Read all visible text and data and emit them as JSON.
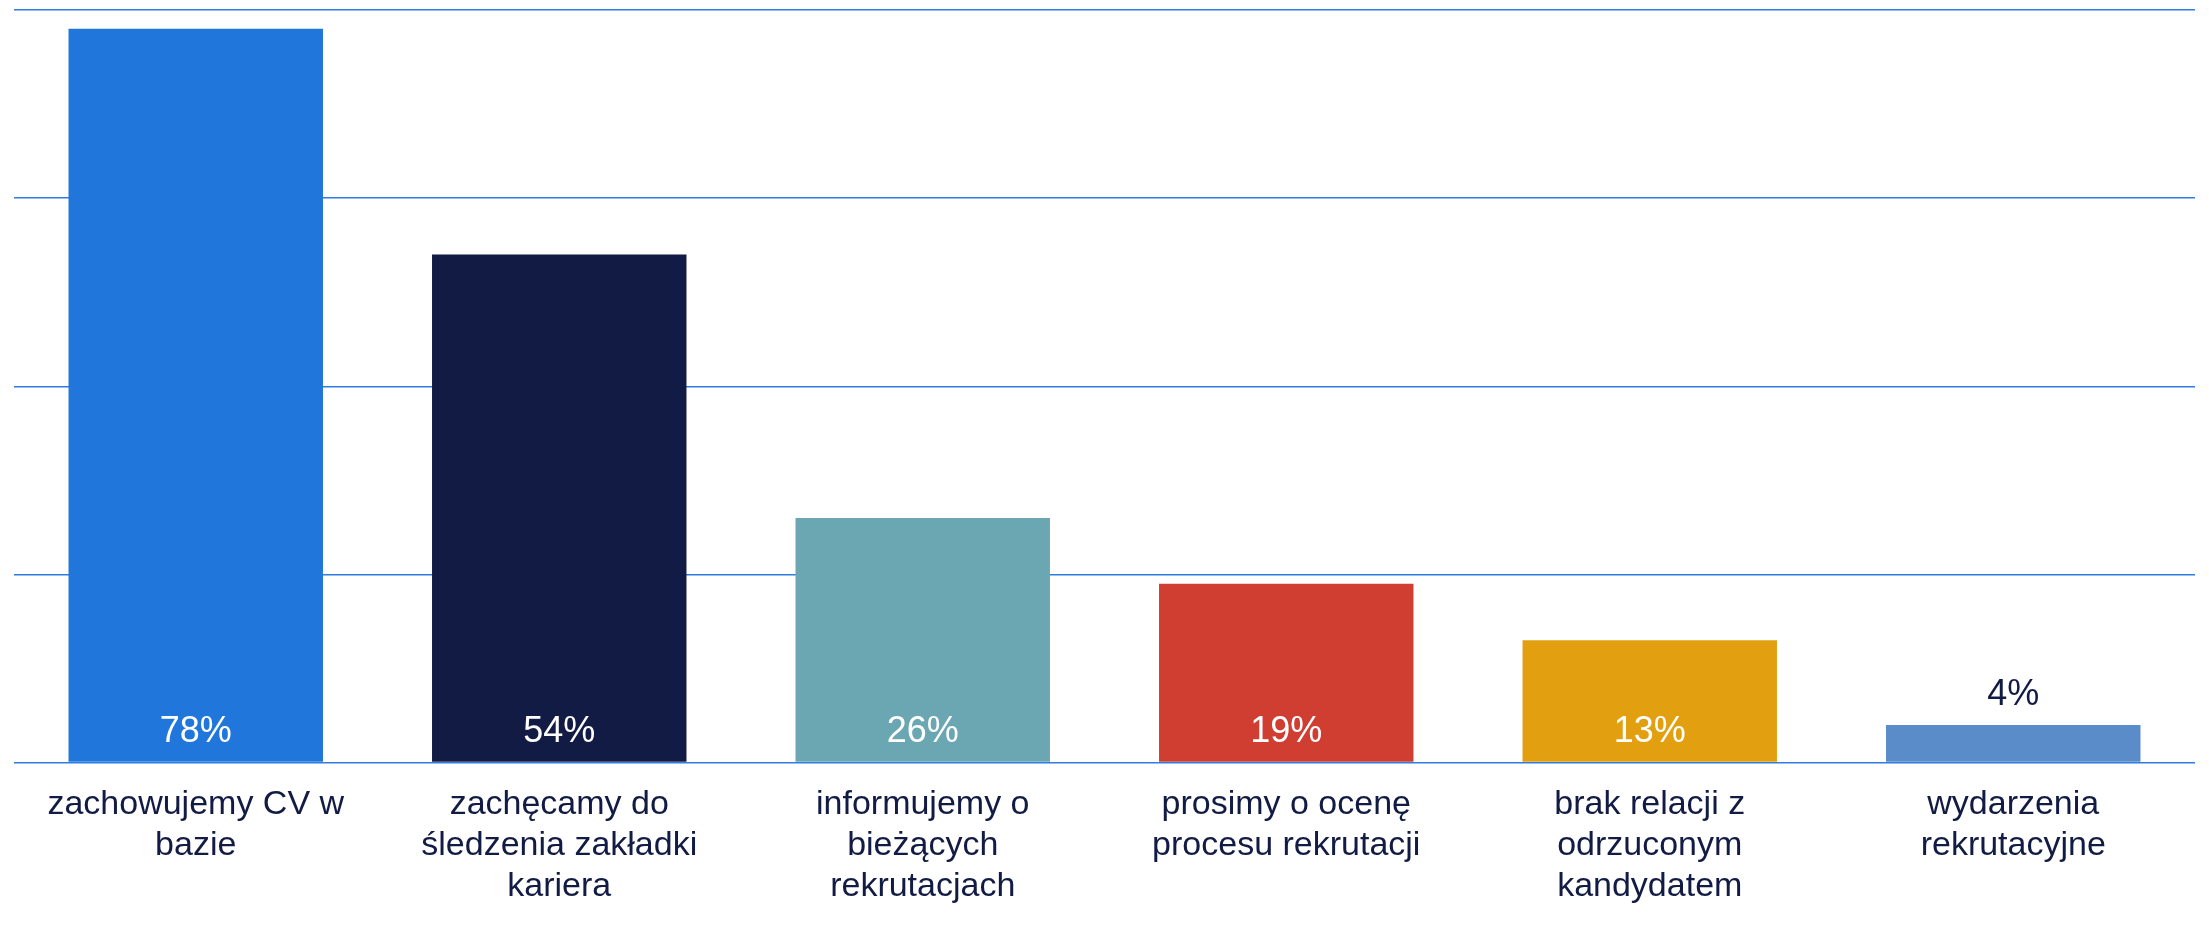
{
  "chart_data": {
    "type": "bar",
    "categories": [
      "zachowujemy CV w bazie",
      "zachęcamy do śledzenia zakładki kariera",
      "informujemy o bieżących rekrutacjach",
      "prosimy o ocenę procesu rekrutacji",
      "brak relacji z odrzuconym kandydatem",
      "wydarzenia rekrutacyjne"
    ],
    "values": [
      78,
      54,
      26,
      19,
      13,
      4
    ],
    "colors": [
      "#2176db",
      "#121b44",
      "#6ba7b3",
      "#d03d31",
      "#e2a011",
      "#5a8cca"
    ],
    "value_labels": [
      "78%",
      "54%",
      "26%",
      "19%",
      "13%",
      "4%"
    ],
    "ylim": [
      0,
      80
    ],
    "yticks": [
      {
        "value": 0,
        "label": null
      },
      {
        "value": 20,
        "label": null
      },
      {
        "value": 40,
        "label": null
      },
      {
        "value": 60,
        "label": null
      },
      {
        "value": 80,
        "label": null
      }
    ],
    "grid": "y",
    "tick_labels": "x"
  }
}
